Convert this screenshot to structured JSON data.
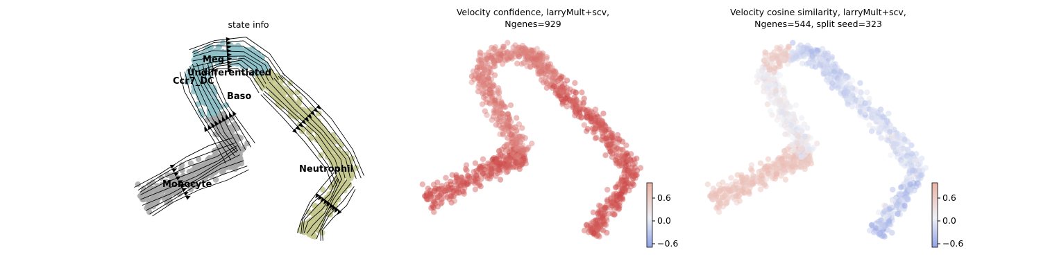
{
  "chart_data": [
    {
      "type": "scatter",
      "title": "state info",
      "points_colored_by": "cell state",
      "velocity_streamlines": true,
      "categories": [
        {
          "label": "Meg",
          "color": "#8fc1c8"
        },
        {
          "label": "Undifferentiated",
          "color": "#8fc1c8"
        },
        {
          "label": "Ccr7_DC",
          "color": "#d98b5a"
        },
        {
          "label": "Baso",
          "color": "#8fc1c8"
        },
        {
          "label": "Neutrophil",
          "color": "#c5c98f"
        },
        {
          "label": "Monocyte",
          "color": "#a8a8a8"
        }
      ]
    },
    {
      "type": "scatter",
      "title_lines": [
        "Velocity confidence, larryMult+scv,",
        "Ngenes=929"
      ],
      "colormap": "coolwarm",
      "colorbar_ticks": [
        "0.6",
        "0.0",
        "−0.6"
      ],
      "colorbar_range": [
        -0.7,
        0.85
      ]
    },
    {
      "type": "scatter",
      "title_lines": [
        "Velocity cosine similarity, larryMult+scv,",
        "Ngenes=544, split seed=323"
      ],
      "colormap": "coolwarm",
      "colorbar_ticks": [
        "0.6",
        "0.0",
        "−0.6"
      ],
      "colorbar_range": [
        -0.7,
        0.85
      ]
    }
  ],
  "colors": {
    "gray_cluster": "#a8a8a8",
    "teal_cluster": "#8fc1c8",
    "olive_cluster": "#c5c98f",
    "ccr7_cluster": "#d98b5a",
    "red_high": "#c83b3b",
    "blue_low": "#5a74d8"
  }
}
